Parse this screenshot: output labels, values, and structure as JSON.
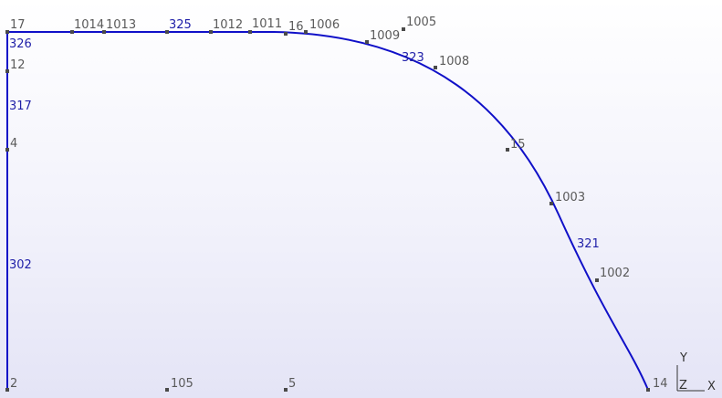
{
  "colors": {
    "curve": "#1010c8",
    "point": "#4a4a4a",
    "point_text": "#5a5a5a",
    "curve_text": "#1f1fa8"
  },
  "points": [
    {
      "id": "17",
      "label": "17"
    },
    {
      "id": "1014",
      "label": "1014"
    },
    {
      "id": "1013",
      "label": "1013"
    },
    {
      "id": "325",
      "label": "325"
    },
    {
      "id": "1012",
      "label": "1012"
    },
    {
      "id": "1011",
      "label": "1011"
    },
    {
      "id": "16",
      "label": "16"
    },
    {
      "id": "1006",
      "label": "1006"
    },
    {
      "id": "1005",
      "label": "1005"
    },
    {
      "id": "1009",
      "label": "1009"
    },
    {
      "id": "1008",
      "label": "1008"
    },
    {
      "id": "15",
      "label": "15"
    },
    {
      "id": "1003",
      "label": "1003"
    },
    {
      "id": "1002",
      "label": "1002"
    },
    {
      "id": "14",
      "label": "14"
    },
    {
      "id": "12",
      "label": "12"
    },
    {
      "id": "4",
      "label": "4"
    },
    {
      "id": "2",
      "label": "2"
    },
    {
      "id": "105",
      "label": "105"
    },
    {
      "id": "5",
      "label": "5"
    }
  ],
  "curves": [
    {
      "id": "326",
      "label": "326"
    },
    {
      "id": "323",
      "label": "323"
    },
    {
      "id": "321",
      "label": "321"
    },
    {
      "id": "317",
      "label": "317"
    },
    {
      "id": "302",
      "label": "302"
    }
  ],
  "triad": {
    "y": "Y",
    "z": "Z",
    "x": "X"
  }
}
